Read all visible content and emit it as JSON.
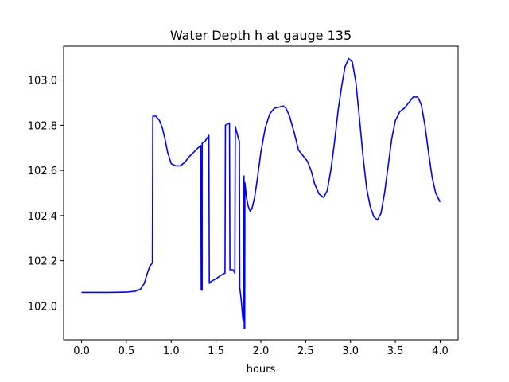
{
  "chart_data": {
    "type": "line",
    "title": "Water Depth h at gauge 135",
    "xlabel": "hours",
    "ylabel": "",
    "xlim": [
      -0.2,
      4.2
    ],
    "ylim": [
      101.85,
      103.15
    ],
    "xticks": [
      0.0,
      0.5,
      1.0,
      1.5,
      2.0,
      2.5,
      3.0,
      3.5,
      4.0
    ],
    "xtick_labels": [
      "0.0",
      "0.5",
      "1.0",
      "1.5",
      "2.0",
      "2.5",
      "3.0",
      "3.5",
      "4.0"
    ],
    "yticks": [
      102.0,
      102.2,
      102.4,
      102.6,
      102.8,
      103.0
    ],
    "ytick_labels": [
      "102.0",
      "102.2",
      "102.4",
      "102.6",
      "102.8",
      "103.0"
    ],
    "grid": false,
    "legend": "none",
    "series": [
      {
        "color": "#0000ff",
        "points": [
          [
            0.0,
            102.06
          ],
          [
            0.3,
            102.06
          ],
          [
            0.5,
            102.061
          ],
          [
            0.6,
            102.065
          ],
          [
            0.66,
            102.075
          ],
          [
            0.7,
            102.1
          ],
          [
            0.73,
            102.14
          ],
          [
            0.76,
            102.175
          ],
          [
            0.79,
            102.19
          ],
          [
            0.795,
            102.84
          ],
          [
            0.83,
            102.84
          ],
          [
            0.87,
            102.82
          ],
          [
            0.9,
            102.79
          ],
          [
            0.93,
            102.74
          ],
          [
            0.96,
            102.68
          ],
          [
            1.0,
            102.63
          ],
          [
            1.05,
            102.62
          ],
          [
            1.1,
            102.62
          ],
          [
            1.15,
            102.635
          ],
          [
            1.2,
            102.66
          ],
          [
            1.25,
            102.68
          ],
          [
            1.3,
            102.7
          ],
          [
            1.33,
            102.71
          ],
          [
            1.335,
            102.07
          ],
          [
            1.345,
            102.07
          ],
          [
            1.345,
            102.72
          ],
          [
            1.38,
            102.73
          ],
          [
            1.42,
            102.755
          ],
          [
            1.425,
            102.1
          ],
          [
            1.45,
            102.11
          ],
          [
            1.5,
            102.12
          ],
          [
            1.55,
            102.135
          ],
          [
            1.6,
            102.145
          ],
          [
            1.605,
            102.8
          ],
          [
            1.65,
            102.81
          ],
          [
            1.655,
            102.16
          ],
          [
            1.69,
            102.16
          ],
          [
            1.71,
            102.145
          ],
          [
            1.715,
            102.795
          ],
          [
            1.75,
            102.74
          ],
          [
            1.76,
            102.73
          ],
          [
            1.765,
            102.08
          ],
          [
            1.78,
            102.03
          ],
          [
            1.8,
            101.94
          ],
          [
            1.81,
            101.935
          ],
          [
            1.812,
            102.575
          ],
          [
            1.815,
            101.9
          ],
          [
            1.82,
            101.9
          ],
          [
            1.822,
            102.545
          ],
          [
            1.84,
            102.48
          ],
          [
            1.86,
            102.44
          ],
          [
            1.88,
            102.42
          ],
          [
            1.9,
            102.43
          ],
          [
            1.93,
            102.48
          ],
          [
            1.96,
            102.56
          ],
          [
            2.0,
            102.68
          ],
          [
            2.05,
            102.79
          ],
          [
            2.1,
            102.85
          ],
          [
            2.15,
            102.875
          ],
          [
            2.2,
            102.88
          ],
          [
            2.25,
            102.885
          ],
          [
            2.28,
            102.875
          ],
          [
            2.32,
            102.84
          ],
          [
            2.37,
            102.77
          ],
          [
            2.42,
            102.69
          ],
          [
            2.47,
            102.665
          ],
          [
            2.52,
            102.64
          ],
          [
            2.56,
            102.6
          ],
          [
            2.6,
            102.54
          ],
          [
            2.65,
            102.495
          ],
          [
            2.7,
            102.48
          ],
          [
            2.74,
            102.51
          ],
          [
            2.78,
            102.6
          ],
          [
            2.82,
            102.72
          ],
          [
            2.86,
            102.86
          ],
          [
            2.9,
            102.97
          ],
          [
            2.94,
            103.06
          ],
          [
            2.98,
            103.095
          ],
          [
            3.02,
            103.08
          ],
          [
            3.06,
            102.99
          ],
          [
            3.1,
            102.83
          ],
          [
            3.14,
            102.66
          ],
          [
            3.18,
            102.52
          ],
          [
            3.22,
            102.44
          ],
          [
            3.26,
            102.395
          ],
          [
            3.3,
            102.38
          ],
          [
            3.34,
            102.41
          ],
          [
            3.38,
            102.5
          ],
          [
            3.42,
            102.62
          ],
          [
            3.46,
            102.74
          ],
          [
            3.5,
            102.82
          ],
          [
            3.55,
            102.86
          ],
          [
            3.6,
            102.875
          ],
          [
            3.65,
            102.9
          ],
          [
            3.7,
            102.925
          ],
          [
            3.75,
            102.925
          ],
          [
            3.79,
            102.89
          ],
          [
            3.83,
            102.8
          ],
          [
            3.87,
            102.68
          ],
          [
            3.91,
            102.57
          ],
          [
            3.95,
            102.5
          ],
          [
            4.0,
            102.46
          ]
        ]
      }
    ]
  }
}
